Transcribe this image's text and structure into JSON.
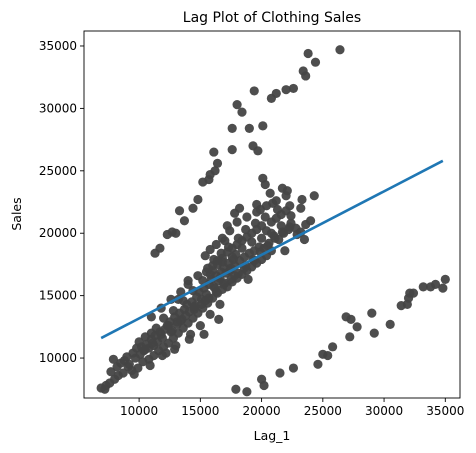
{
  "chart_data": {
    "type": "scatter",
    "title": "Lag Plot of Clothing Sales",
    "xlabel": "Lag_1",
    "ylabel": "Sales",
    "xlim": [
      5500,
      36200
    ],
    "ylim": [
      6800,
      36200
    ],
    "xticks": [
      10000,
      15000,
      20000,
      25000,
      30000,
      35000
    ],
    "yticks": [
      10000,
      15000,
      20000,
      25000,
      30000,
      35000
    ],
    "grid": false,
    "colors": {
      "points": "#444444",
      "regression": "#1f77b4"
    },
    "regression_line": {
      "x": [
        6900,
        34800
      ],
      "y": [
        11600,
        25800
      ]
    },
    "series": [
      {
        "type": "scatter",
        "points": [
          [
            6900,
            7600
          ],
          [
            7300,
            7800
          ],
          [
            7600,
            8000
          ],
          [
            7200,
            7500
          ],
          [
            8000,
            8300
          ],
          [
            8300,
            8600
          ],
          [
            7700,
            8900
          ],
          [
            8200,
            9300
          ],
          [
            8500,
            9600
          ],
          [
            7900,
            9900
          ],
          [
            8800,
            9800
          ],
          [
            9000,
            10100
          ],
          [
            9200,
            9500
          ],
          [
            9500,
            10400
          ],
          [
            9700,
            10000
          ],
          [
            9800,
            10800
          ],
          [
            10100,
            10300
          ],
          [
            10200,
            10900
          ],
          [
            10400,
            10600
          ],
          [
            10600,
            11100
          ],
          [
            10000,
            11300
          ],
          [
            10800,
            10800
          ],
          [
            11000,
            11500
          ],
          [
            11200,
            11000
          ],
          [
            11300,
            11800
          ],
          [
            11500,
            11300
          ],
          [
            11700,
            12100
          ],
          [
            11900,
            11600
          ],
          [
            12100,
            12300
          ],
          [
            11000,
            12000
          ],
          [
            10500,
            11700
          ],
          [
            12300,
            12600
          ],
          [
            12500,
            12900
          ],
          [
            12700,
            12200
          ],
          [
            12900,
            13300
          ],
          [
            13100,
            12700
          ],
          [
            13300,
            13600
          ],
          [
            13500,
            13100
          ],
          [
            13700,
            13900
          ],
          [
            13900,
            14300
          ],
          [
            14100,
            13700
          ],
          [
            14300,
            14500
          ],
          [
            14500,
            14100
          ],
          [
            14700,
            14900
          ],
          [
            14900,
            15300
          ],
          [
            15100,
            14700
          ],
          [
            15300,
            15600
          ],
          [
            15500,
            15100
          ],
          [
            15700,
            15900
          ],
          [
            15900,
            16300
          ],
          [
            16100,
            15700
          ],
          [
            16300,
            16600
          ],
          [
            16500,
            16200
          ],
          [
            16700,
            16900
          ],
          [
            16900,
            17300
          ],
          [
            17100,
            16800
          ],
          [
            17300,
            17600
          ],
          [
            17500,
            17200
          ],
          [
            17700,
            17900
          ],
          [
            17900,
            18300
          ],
          [
            16000,
            17000
          ],
          [
            16400,
            17500
          ],
          [
            15800,
            16700
          ],
          [
            16800,
            18000
          ],
          [
            17200,
            18500
          ],
          [
            17600,
            18800
          ],
          [
            18000,
            19100
          ],
          [
            18400,
            19400
          ],
          [
            18800,
            19700
          ],
          [
            19200,
            20000
          ],
          [
            19600,
            20300
          ],
          [
            20000,
            20600
          ],
          [
            20400,
            20200
          ],
          [
            20800,
            20900
          ],
          [
            21200,
            21200
          ],
          [
            21600,
            21500
          ],
          [
            22000,
            21800
          ],
          [
            22400,
            20800
          ],
          [
            22800,
            20400
          ],
          [
            23200,
            20100
          ],
          [
            23600,
            20700
          ],
          [
            24000,
            21000
          ],
          [
            21000,
            19800
          ],
          [
            20600,
            19200
          ],
          [
            19800,
            18900
          ],
          [
            19400,
            18600
          ],
          [
            21400,
            19500
          ],
          [
            18600,
            18100
          ],
          [
            18200,
            17800
          ],
          [
            17800,
            17400
          ],
          [
            17400,
            17000
          ],
          [
            16600,
            16400
          ],
          [
            19000,
            18400
          ],
          [
            20200,
            18800
          ],
          [
            21800,
            20000
          ],
          [
            22200,
            20300
          ],
          [
            10800,
            9900
          ],
          [
            11200,
            10200
          ],
          [
            11600,
            10600
          ],
          [
            12000,
            10900
          ],
          [
            12400,
            11200
          ],
          [
            12800,
            11600
          ],
          [
            13200,
            12000
          ],
          [
            13600,
            12400
          ],
          [
            14000,
            12800
          ],
          [
            14400,
            13200
          ],
          [
            14800,
            13600
          ],
          [
            15200,
            14000
          ],
          [
            15600,
            14400
          ],
          [
            16000,
            14800
          ],
          [
            16400,
            15200
          ],
          [
            16800,
            15500
          ],
          [
            17200,
            15700
          ],
          [
            17600,
            16100
          ],
          [
            18000,
            16400
          ],
          [
            18400,
            16700
          ],
          [
            18800,
            17000
          ],
          [
            19200,
            17300
          ],
          [
            19600,
            17600
          ],
          [
            20000,
            17900
          ],
          [
            20400,
            18200
          ],
          [
            20800,
            18600
          ],
          [
            14200,
            11900
          ],
          [
            15000,
            12600
          ],
          [
            15800,
            13500
          ],
          [
            16600,
            14300
          ],
          [
            13000,
            11000
          ],
          [
            12200,
            10400
          ],
          [
            9400,
            9000
          ],
          [
            9900,
            9200
          ],
          [
            10300,
            9700
          ],
          [
            8700,
            8800
          ],
          [
            9100,
            9300
          ],
          [
            12600,
            12100
          ],
          [
            13400,
            13000
          ],
          [
            14600,
            14200
          ],
          [
            15400,
            14600
          ],
          [
            16200,
            15600
          ],
          [
            17000,
            16000
          ],
          [
            17800,
            16600
          ],
          [
            18600,
            17200
          ],
          [
            19400,
            17800
          ],
          [
            11400,
            12400
          ],
          [
            12000,
            13200
          ],
          [
            12800,
            13800
          ],
          [
            13600,
            14600
          ],
          [
            14400,
            15400
          ],
          [
            15200,
            16200
          ],
          [
            16000,
            17400
          ],
          [
            16800,
            17700
          ],
          [
            17600,
            18100
          ],
          [
            18400,
            18800
          ],
          [
            19200,
            19300
          ],
          [
            20000,
            19600
          ],
          [
            20800,
            20000
          ],
          [
            21600,
            20600
          ],
          [
            22400,
            21400
          ],
          [
            23200,
            22000
          ],
          [
            18800,
            21300
          ],
          [
            19600,
            21700
          ],
          [
            20400,
            22200
          ],
          [
            21200,
            22600
          ],
          [
            22000,
            23000
          ],
          [
            18000,
            20900
          ],
          [
            17400,
            20200
          ],
          [
            16800,
            19600
          ],
          [
            21700,
            23600
          ],
          [
            20700,
            23200
          ],
          [
            20300,
            23900
          ],
          [
            22100,
            23400
          ],
          [
            20100,
            24400
          ],
          [
            19600,
            22300
          ],
          [
            18200,
            22000
          ],
          [
            17800,
            21600
          ],
          [
            17200,
            20600
          ],
          [
            15800,
            18700
          ],
          [
            15400,
            18200
          ],
          [
            16300,
            19100
          ],
          [
            17000,
            19400
          ],
          [
            11700,
            18800
          ],
          [
            11300,
            18400
          ],
          [
            12300,
            19900
          ],
          [
            12700,
            20100
          ],
          [
            13000,
            20000
          ],
          [
            13700,
            21000
          ],
          [
            14400,
            22000
          ],
          [
            14800,
            22700
          ],
          [
            13300,
            21800
          ],
          [
            15700,
            24300
          ],
          [
            15200,
            24100
          ],
          [
            16200,
            25000
          ],
          [
            15800,
            24700
          ],
          [
            16400,
            25600
          ],
          [
            17600,
            26700
          ],
          [
            19300,
            27000
          ],
          [
            19700,
            26600
          ],
          [
            20100,
            28600
          ],
          [
            19000,
            28400
          ],
          [
            18400,
            29700
          ],
          [
            20800,
            30800
          ],
          [
            21200,
            31200
          ],
          [
            19400,
            31400
          ],
          [
            22600,
            31600
          ],
          [
            22000,
            31500
          ],
          [
            23400,
            33000
          ],
          [
            23600,
            32600
          ],
          [
            23800,
            34400
          ],
          [
            24400,
            33700
          ],
          [
            26400,
            34700
          ],
          [
            18000,
            30300
          ],
          [
            17600,
            28400
          ],
          [
            16100,
            26500
          ],
          [
            17900,
            7500
          ],
          [
            18800,
            7300
          ],
          [
            20200,
            7800
          ],
          [
            20000,
            8300
          ],
          [
            21500,
            8800
          ],
          [
            22600,
            9200
          ],
          [
            24600,
            9500
          ],
          [
            25000,
            10300
          ],
          [
            25400,
            10200
          ],
          [
            25800,
            10900
          ],
          [
            27200,
            11700
          ],
          [
            27800,
            12500
          ],
          [
            26900,
            13300
          ],
          [
            27300,
            13100
          ],
          [
            29000,
            13600
          ],
          [
            29200,
            12000
          ],
          [
            30500,
            12700
          ],
          [
            31400,
            14200
          ],
          [
            31900,
            14300
          ],
          [
            32000,
            14800
          ],
          [
            32400,
            15200
          ],
          [
            32100,
            15200
          ],
          [
            33200,
            15700
          ],
          [
            33800,
            15700
          ],
          [
            34200,
            15900
          ],
          [
            34800,
            15600
          ],
          [
            35000,
            16300
          ],
          [
            10500,
            10700
          ],
          [
            11100,
            11200
          ],
          [
            11800,
            11900
          ],
          [
            12400,
            12600
          ],
          [
            13100,
            12900
          ],
          [
            13800,
            13400
          ],
          [
            14500,
            13900
          ],
          [
            15100,
            14300
          ],
          [
            15700,
            14800
          ],
          [
            16300,
            15300
          ],
          [
            16900,
            15900
          ],
          [
            17500,
            16300
          ],
          [
            18100,
            16800
          ],
          [
            18700,
            17400
          ],
          [
            19300,
            17900
          ],
          [
            19900,
            18500
          ],
          [
            20500,
            19000
          ],
          [
            21100,
            19600
          ],
          [
            21700,
            20100
          ],
          [
            22300,
            20500
          ],
          [
            22900,
            19900
          ],
          [
            23500,
            19500
          ],
          [
            21900,
            18600
          ],
          [
            18900,
            16300
          ],
          [
            16500,
            13100
          ],
          [
            15300,
            11900
          ],
          [
            14100,
            11500
          ],
          [
            12900,
            10700
          ],
          [
            11900,
            10200
          ],
          [
            10900,
            9400
          ],
          [
            9600,
            8700
          ],
          [
            13200,
            14700
          ],
          [
            14000,
            16200
          ],
          [
            15500,
            16900
          ],
          [
            16100,
            17900
          ],
          [
            16700,
            18400
          ],
          [
            17300,
            18900
          ],
          [
            18100,
            19600
          ],
          [
            18700,
            20300
          ],
          [
            19500,
            20800
          ],
          [
            20300,
            21300
          ],
          [
            21300,
            21900
          ],
          [
            22300,
            22200
          ],
          [
            23300,
            22700
          ],
          [
            24300,
            23000
          ],
          [
            19900,
            21900
          ],
          [
            20900,
            22400
          ],
          [
            16400,
            17800
          ],
          [
            15600,
            17200
          ],
          [
            14800,
            16600
          ],
          [
            14000,
            15900
          ],
          [
            13400,
            15300
          ],
          [
            12600,
            14700
          ],
          [
            11800,
            14000
          ],
          [
            11000,
            13300
          ]
        ]
      }
    ]
  }
}
